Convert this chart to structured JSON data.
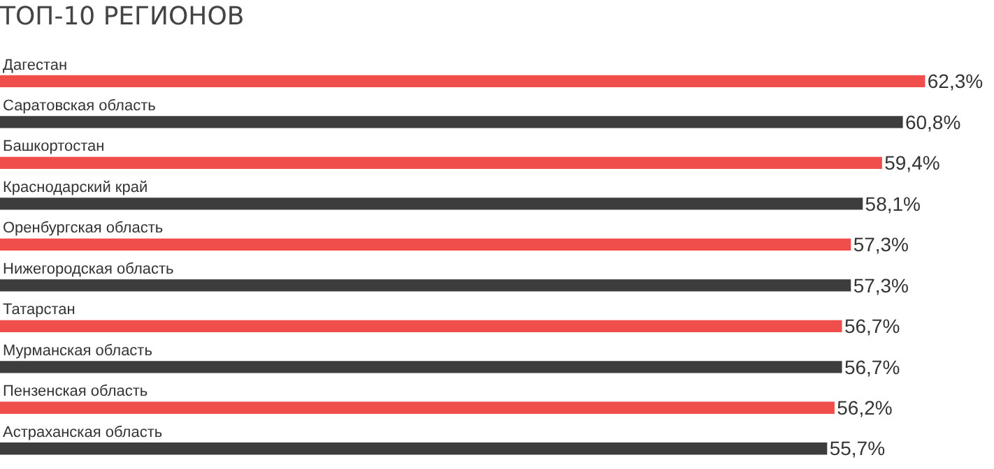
{
  "chart_data": {
    "type": "bar",
    "orientation": "horizontal",
    "title": "ТОП-10 РЕГИОНОВ",
    "categories": [
      "Дагестан",
      "Саратовская область",
      "Башкортостан",
      "Краснодарский край",
      "Оренбургская область",
      "Нижегородская область",
      "Татарстан",
      "Мурманская область",
      "Пензенская область",
      "Астраханская область"
    ],
    "values": [
      62.3,
      60.8,
      59.4,
      58.1,
      57.3,
      57.3,
      56.7,
      56.7,
      56.2,
      55.7
    ],
    "value_labels": [
      "62,3%",
      "60,8%",
      "59,4%",
      "58,1%",
      "57,3%",
      "57,3%",
      "56,7%",
      "56,7%",
      "56,2%",
      "55,7%"
    ],
    "colors": [
      "#f04e4a",
      "#3d3d3d",
      "#f04e4a",
      "#3d3d3d",
      "#f04e4a",
      "#3d3d3d",
      "#f04e4a",
      "#3d3d3d",
      "#f04e4a",
      "#3d3d3d"
    ],
    "legend": false
  }
}
